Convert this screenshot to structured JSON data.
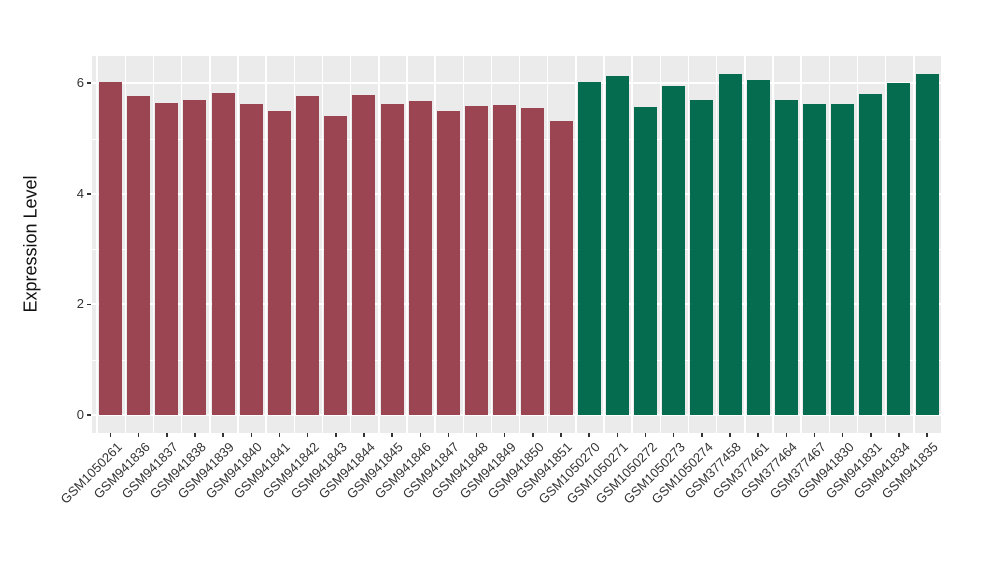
{
  "chart_data": {
    "type": "bar",
    "title": "",
    "xlabel": "",
    "ylabel": "Expression Level",
    "ylim": [
      -0.33,
      6.49
    ],
    "yticks": [
      0,
      2,
      4,
      6
    ],
    "minor_gridlines": [
      1,
      3,
      5
    ],
    "grid": true,
    "legend_position": "none",
    "panel_bg": "#EBEBEB",
    "grid_color": "#FFFFFF",
    "tick_color": "#333333",
    "group_colors": {
      "group1": "#9B4452",
      "group2": "#066C50"
    },
    "bars": [
      {
        "label": "GSM1050261",
        "value": 6.02,
        "group": "group1"
      },
      {
        "label": "GSM941836",
        "value": 5.76,
        "group": "group1"
      },
      {
        "label": "GSM941837",
        "value": 5.65,
        "group": "group1"
      },
      {
        "label": "GSM941838",
        "value": 5.7,
        "group": "group1"
      },
      {
        "label": "GSM941839",
        "value": 5.82,
        "group": "group1"
      },
      {
        "label": "GSM941840",
        "value": 5.63,
        "group": "group1"
      },
      {
        "label": "GSM941841",
        "value": 5.5,
        "group": "group1"
      },
      {
        "label": "GSM941842",
        "value": 5.76,
        "group": "group1"
      },
      {
        "label": "GSM941843",
        "value": 5.41,
        "group": "group1"
      },
      {
        "label": "GSM941844",
        "value": 5.78,
        "group": "group1"
      },
      {
        "label": "GSM941845",
        "value": 5.62,
        "group": "group1"
      },
      {
        "label": "GSM941846",
        "value": 5.68,
        "group": "group1"
      },
      {
        "label": "GSM941847",
        "value": 5.5,
        "group": "group1"
      },
      {
        "label": "GSM941848",
        "value": 5.59,
        "group": "group1"
      },
      {
        "label": "GSM941849",
        "value": 5.61,
        "group": "group1"
      },
      {
        "label": "GSM941850",
        "value": 5.55,
        "group": "group1"
      },
      {
        "label": "GSM941851",
        "value": 5.31,
        "group": "group1"
      },
      {
        "label": "GSM1050270",
        "value": 6.02,
        "group": "group2"
      },
      {
        "label": "GSM1050271",
        "value": 6.13,
        "group": "group2"
      },
      {
        "label": "GSM1050272",
        "value": 5.57,
        "group": "group2"
      },
      {
        "label": "GSM1050273",
        "value": 5.95,
        "group": "group2"
      },
      {
        "label": "GSM1050274",
        "value": 5.7,
        "group": "group2"
      },
      {
        "label": "GSM377458",
        "value": 6.17,
        "group": "group2"
      },
      {
        "label": "GSM377461",
        "value": 6.05,
        "group": "group2"
      },
      {
        "label": "GSM377464",
        "value": 5.7,
        "group": "group2"
      },
      {
        "label": "GSM377467",
        "value": 5.62,
        "group": "group2"
      },
      {
        "label": "GSM941830",
        "value": 5.63,
        "group": "group2"
      },
      {
        "label": "GSM941831",
        "value": 5.8,
        "group": "group2"
      },
      {
        "label": "GSM941834",
        "value": 6.0,
        "group": "group2"
      },
      {
        "label": "GSM941835",
        "value": 6.16,
        "group": "group2"
      }
    ]
  }
}
